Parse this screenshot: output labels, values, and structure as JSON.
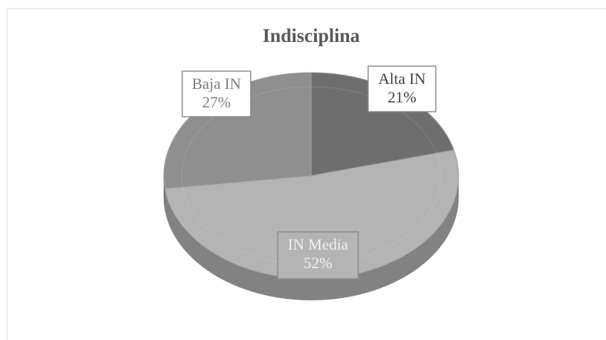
{
  "chart_data": {
    "type": "pie",
    "title": "Indisciplina",
    "categories": [
      "Alta IN",
      "IN Media",
      "Baja IN"
    ],
    "values": [
      21,
      52,
      27
    ],
    "value_labels": [
      "21%",
      "52%",
      "27%"
    ],
    "colors": [
      "#6e6e6e",
      "#b4b4b4",
      "#8f8f8f"
    ]
  }
}
